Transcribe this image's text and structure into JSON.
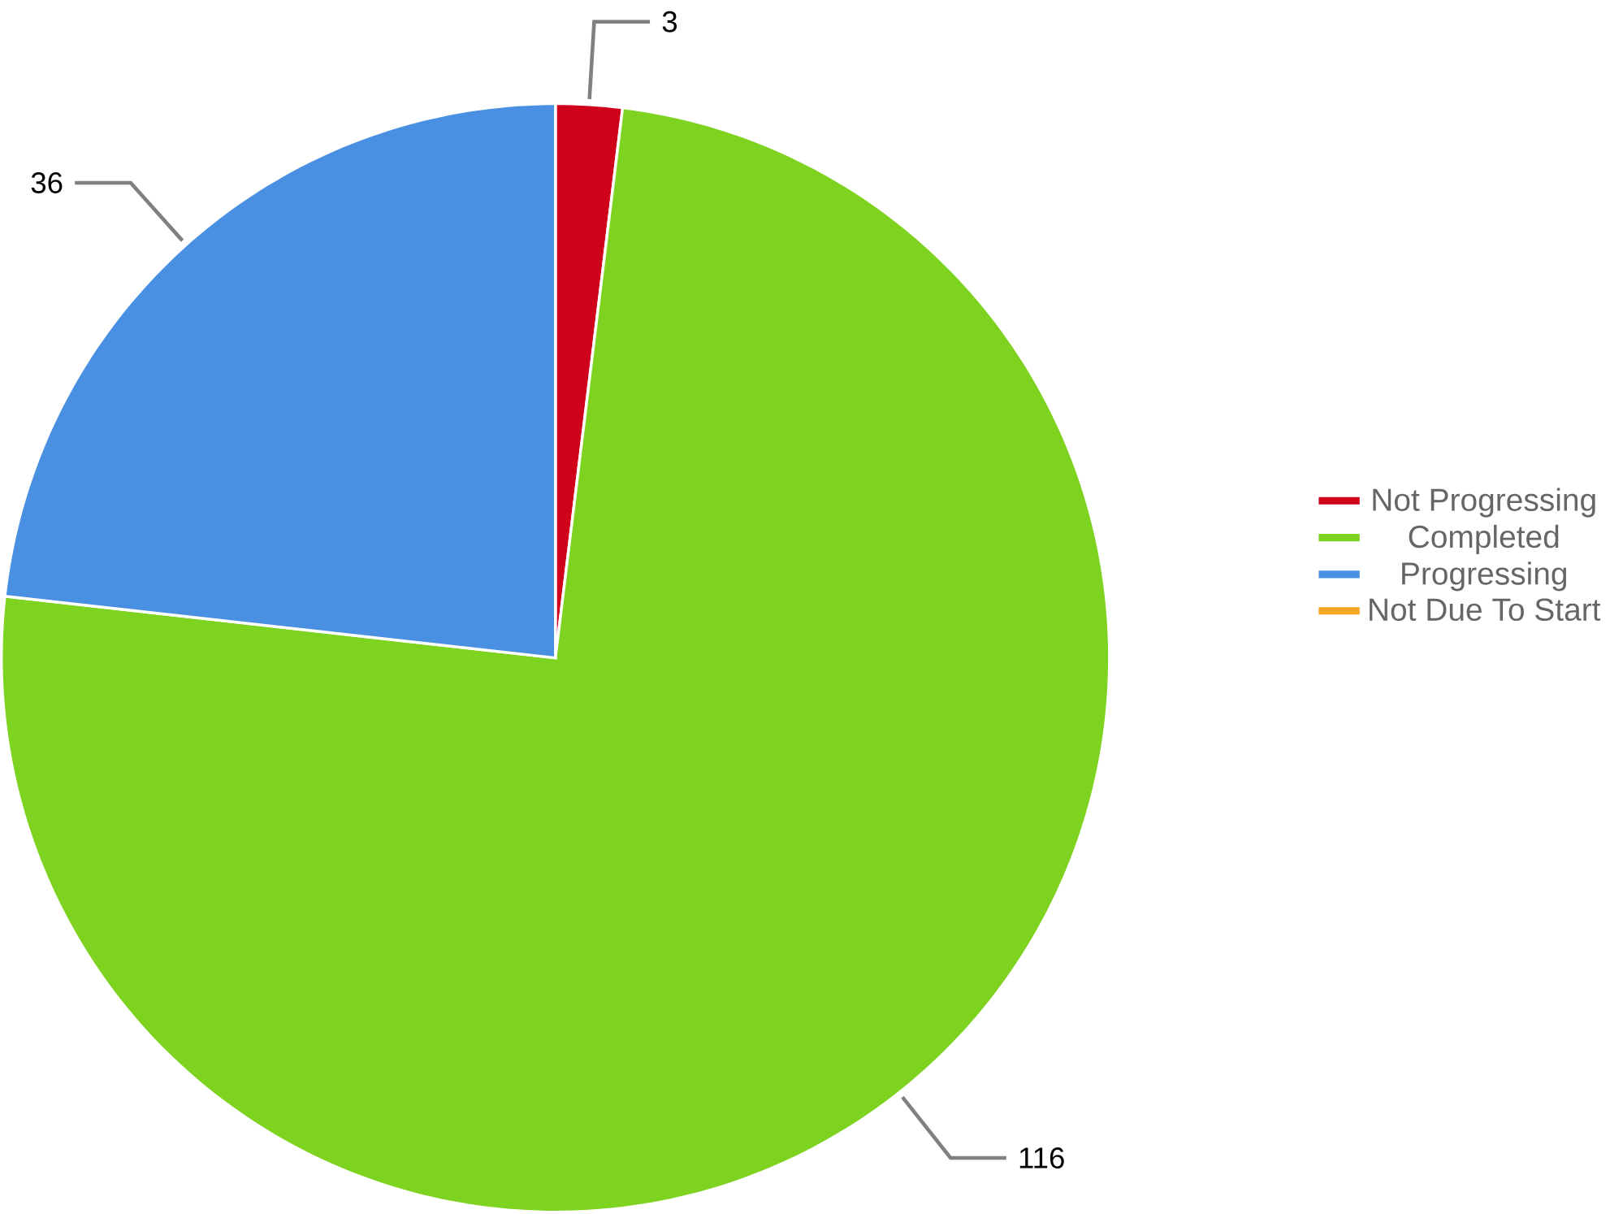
{
  "chart_data": {
    "type": "pie",
    "categories": [
      "Not Progressing",
      "Completed",
      "Progressing",
      "Not Due To Start"
    ],
    "values": [
      3,
      116,
      36,
      0
    ],
    "colors": [
      "#d0021b",
      "#7ed321",
      "#4a90e2",
      "#f5a623"
    ],
    "value_labels": [
      "3",
      "116",
      "36",
      null
    ],
    "legend": "right"
  }
}
